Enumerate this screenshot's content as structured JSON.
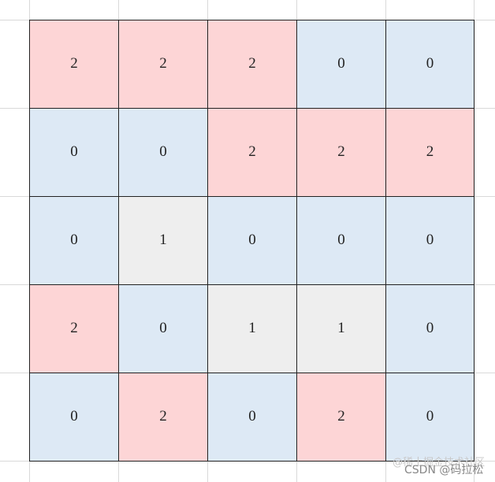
{
  "grid": {
    "rows": [
      [
        2,
        2,
        2,
        0,
        0
      ],
      [
        0,
        0,
        2,
        2,
        2
      ],
      [
        0,
        1,
        0,
        0,
        0
      ],
      [
        2,
        0,
        1,
        1,
        0
      ],
      [
        0,
        2,
        0,
        2,
        0
      ]
    ]
  },
  "watermark": {
    "faded": "@稀土掘金技术社区",
    "main": "CSDN @码拉松"
  }
}
